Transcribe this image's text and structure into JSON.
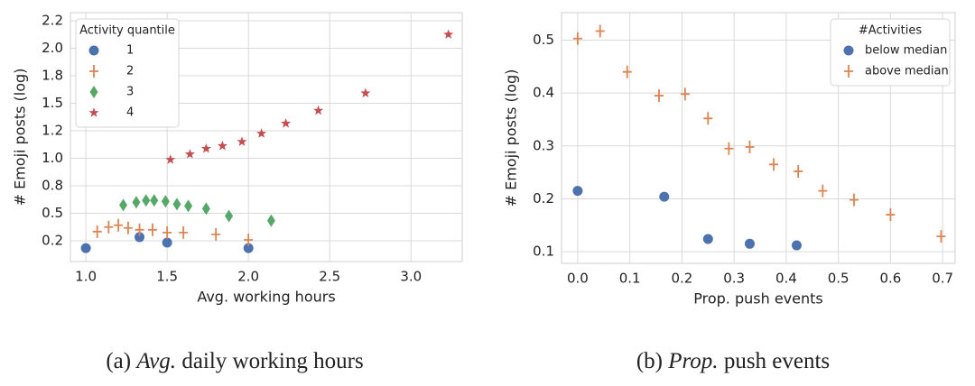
{
  "chart_data": [
    {
      "type": "scatter",
      "xlabel": "Avg. working hours",
      "ylabel": "# Emoji posts (log)",
      "caption": {
        "label": "(a)",
        "emphasis": "Avg.",
        "text": "daily working hours"
      },
      "legend_title": "Activity quantile",
      "legend": "upper left",
      "grid": true,
      "xlim": [
        0.905,
        3.315
      ],
      "xticks": [
        {
          "value": 1,
          "label": "1.0"
        },
        {
          "value": 1.5,
          "label": "1.5"
        },
        {
          "value": 2,
          "label": "2.0"
        },
        {
          "value": 2.5,
          "label": "2.5"
        },
        {
          "value": 3,
          "label": "3.0"
        }
      ],
      "yticks": [
        0.2,
        0.5,
        0.8,
        {
          "value": 1,
          "label": "1.0"
        },
        1.2,
        1.5,
        1.8,
        {
          "value": 2,
          "label": "2.0"
        },
        2.2
      ],
      "series": [
        {
          "name": "1",
          "color": "#4c72b0",
          "marker": "circle",
          "x": [
            1.0,
            1.33,
            1.5,
            2.0
          ],
          "values": [
            0.12,
            0.24,
            0.18,
            0.12
          ]
        },
        {
          "name": "2",
          "color": "#dd8452",
          "marker": "plus",
          "x": [
            1.07,
            1.14,
            1.2,
            1.26,
            1.33,
            1.41,
            1.5,
            1.6,
            1.8,
            2.0
          ],
          "values": [
            0.3,
            0.35,
            0.37,
            0.34,
            0.32,
            0.32,
            0.29,
            0.29,
            0.27,
            0.21
          ]
        },
        {
          "name": "3",
          "color": "#55a868",
          "marker": "diamond",
          "x": [
            1.23,
            1.31,
            1.37,
            1.42,
            1.49,
            1.56,
            1.63,
            1.74,
            1.88,
            2.14
          ],
          "values": [
            0.59,
            0.62,
            0.64,
            0.64,
            0.63,
            0.6,
            0.58,
            0.55,
            0.47,
            0.42
          ]
        },
        {
          "name": "4",
          "color": "#c44e52",
          "marker": "star",
          "x": [
            1.52,
            1.64,
            1.74,
            1.84,
            1.96,
            2.08,
            2.23,
            2.43,
            2.72,
            3.23
          ],
          "values": [
            0.99,
            1.03,
            1.07,
            1.09,
            1.12,
            1.18,
            1.28,
            1.42,
            1.61,
            2.1
          ]
        }
      ]
    },
    {
      "type": "scatter",
      "xlabel": "Prop. push events",
      "ylabel": "# Emoji posts (log)",
      "caption": {
        "label": "(b)",
        "emphasis": "Prop.",
        "text": "push events"
      },
      "legend_title": "#Activities",
      "legend": "upper right",
      "grid": true,
      "xlim": [
        -0.031,
        0.724
      ],
      "ylim": [
        0.078,
        0.552
      ],
      "xticks": [
        {
          "value": 0,
          "label": "0.0"
        },
        0.1,
        0.2,
        0.3,
        0.4,
        0.5,
        0.6,
        0.7
      ],
      "yticks": [
        0.1,
        0.2,
        0.3,
        0.4,
        0.5
      ],
      "series": [
        {
          "name": "below median",
          "color": "#4c72b0",
          "marker": "circle",
          "x": [
            0.0,
            0.166,
            0.25,
            0.33,
            0.42
          ],
          "values": [
            0.215,
            0.204,
            0.124,
            0.115,
            0.112
          ]
        },
        {
          "name": "above median",
          "color": "#dd8452",
          "marker": "plus",
          "x": [
            0.0,
            0.043,
            0.095,
            0.156,
            0.206,
            0.25,
            0.29,
            0.33,
            0.376,
            0.423,
            0.47,
            0.53,
            0.6,
            0.697
          ],
          "values": [
            0.503,
            0.517,
            0.44,
            0.395,
            0.398,
            0.352,
            0.295,
            0.298,
            0.265,
            0.252,
            0.215,
            0.198,
            0.17,
            0.129
          ]
        }
      ]
    }
  ]
}
